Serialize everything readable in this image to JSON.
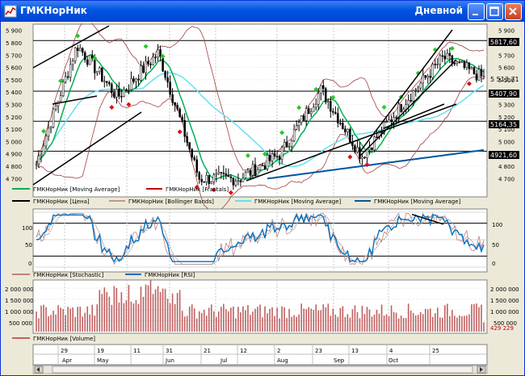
{
  "window": {
    "title": "ГМКНорНик",
    "period": "Дневной",
    "icon": "chart-icon",
    "controls": [
      "minimize-icon",
      "maximize-icon",
      "close-icon"
    ],
    "accent": "#0054e3"
  },
  "price_axis": {
    "left_ticks": [
      "5 900",
      "5 800",
      "5 700",
      "5 600",
      "5 500",
      "5 400",
      "5 300",
      "5 200",
      "5 100",
      "5 000",
      "4 900",
      "4 800",
      "4 700"
    ],
    "right_ticks": [
      "5 900",
      "5 800",
      "5 700",
      "5 600",
      "5 500",
      "5 400",
      "5 300",
      "5 200",
      "5 100",
      "5 000",
      "4 900",
      "4 800",
      "4 700"
    ],
    "tags": [
      "5817,60",
      "5 513,71",
      "5407,90",
      "5164,35",
      "4921,60"
    ]
  },
  "legend_price": [
    {
      "name": "ГМКНорНик [Moving Average]",
      "color": "#00b050",
      "style": "line"
    },
    {
      "name": "ГМКНорНик [Fractals]",
      "color": "#c00000",
      "style": "line"
    },
    {
      "name": "ГМКНорНик [Цена]",
      "color": "#000000",
      "style": "line"
    },
    {
      "name": "ГМКНорНик [Bollinger Bands]",
      "color": "#a04040",
      "style": "line"
    },
    {
      "name": "ГМКНорНик [Moving Average]",
      "color": "#66e0f0",
      "style": "line"
    },
    {
      "name": "ГМКНорНик [Moving Average]",
      "color": "#0055a0",
      "style": "line"
    }
  ],
  "osc_axis": {
    "left_ticks": [
      "100",
      "50",
      "0"
    ],
    "right_ticks": [
      "100",
      "50",
      "0"
    ]
  },
  "legend_osc": [
    {
      "name": "ГМКНорНик [Stochastic]",
      "color": "#c08080"
    },
    {
      "name": "ГМКНорНик [RSI]",
      "color": "#0070c0"
    }
  ],
  "vol_axis": {
    "left_ticks": [
      "2 000 000",
      "1 500 000",
      "1 000 000",
      "500 000"
    ],
    "right_ticks": [
      "2 000 000",
      "1 500 000",
      "1 000 000",
      "500 000"
    ],
    "tag": "429 229"
  },
  "legend_vol": [
    {
      "name": "ГМКНорНик [Volume]",
      "color": "#c06060"
    }
  ],
  "time_axis": {
    "days": [
      "29",
      "19",
      "11",
      "31",
      "21",
      "12",
      "2",
      "23",
      "13",
      "4",
      "25"
    ],
    "months": [
      "Apr",
      "May",
      "Jun",
      "Jul",
      "Aug",
      "Sep",
      "Oct"
    ]
  },
  "chart_data": {
    "type": "candlestick",
    "instrument": "ГМКНорНик",
    "levels": [
      5817.6,
      5407.9,
      5164.35,
      4921.6
    ],
    "last_close": 5513.71,
    "last_volume": 429229,
    "price_range": [
      4650,
      5950
    ],
    "osc_range": [
      0,
      100
    ],
    "vol_range": [
      0,
      2300000
    ],
    "key_prices": [
      {
        "date": "late Mar",
        "price": 4820
      },
      {
        "date": "Apr 15",
        "price": 5780
      },
      {
        "date": "Apr 25",
        "price": 5360
      },
      {
        "date": "May 8",
        "price": 5720
      },
      {
        "date": "May 14",
        "price": 4700
      },
      {
        "date": "Jun 25",
        "price": 4700
      },
      {
        "date": "Aug 1",
        "price": 4900
      },
      {
        "date": "Aug 25",
        "price": 5420
      },
      {
        "date": "Sep 20",
        "price": 4880
      },
      {
        "date": "Oct 10",
        "price": 5300
      },
      {
        "date": "Oct 25",
        "price": 5680
      },
      {
        "date": "Oct 29",
        "price": 5514
      }
    ]
  }
}
